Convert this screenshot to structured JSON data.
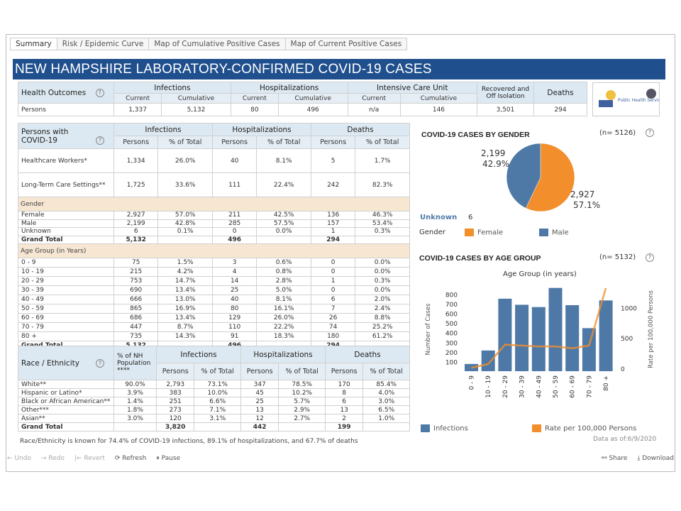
{
  "tabs": [
    "Summary",
    "Risk / Epidemic Curve",
    "Map of Cumulative Positive Cases",
    "Map of Current Positive Cases"
  ],
  "title": "NEW HAMPSHIRE LABORATORY-CONFIRMED COVID-19 CASES",
  "outcomes": {
    "label": "Health Outcomes",
    "groups": [
      "Infections",
      "Hospitalizations",
      "Intensive Care Unit",
      "Recovered and Off Isolation",
      "Deaths"
    ],
    "sub": [
      "Current",
      "Cumulative"
    ],
    "row_label": "Persons",
    "values": [
      "1,337",
      "5,132",
      "80",
      "496",
      "n/a",
      "146",
      "3,501",
      "294"
    ]
  },
  "logo_text": "NH DIVISION OF Public Health Services",
  "persons": {
    "label": "Persons with COVID-19",
    "groups": [
      "Infections",
      "Hospitalizations",
      "Deaths"
    ],
    "sub": [
      "Persons",
      "% of Total"
    ],
    "top_rows": [
      {
        "label": "Healthcare Workers*",
        "v": [
          "1,334",
          "26.0%",
          "40",
          "8.1%",
          "5",
          "1.7%"
        ]
      },
      {
        "label": "Long-Term Care Settings**",
        "v": [
          "1,725",
          "33.6%",
          "111",
          "22.4%",
          "242",
          "82.3%"
        ]
      }
    ],
    "gender_label": "Gender",
    "gender_rows": [
      {
        "label": "Female",
        "v": [
          "2,927",
          "57.0%",
          "211",
          "42.5%",
          "136",
          "46.3%"
        ]
      },
      {
        "label": "Male",
        "v": [
          "2,199",
          "42.8%",
          "285",
          "57.5%",
          "157",
          "53.4%"
        ]
      },
      {
        "label": "Unknown",
        "v": [
          "6",
          "0.1%",
          "0",
          "0.0%",
          "1",
          "0.3%"
        ]
      },
      {
        "label": "Grand Total",
        "v": [
          "5,132",
          "",
          "496",
          "",
          "294",
          ""
        ]
      }
    ],
    "age_label": "Age Group (in Years)",
    "age_rows": [
      {
        "label": "0 - 9",
        "v": [
          "75",
          "1.5%",
          "3",
          "0.6%",
          "0",
          "0.0%"
        ]
      },
      {
        "label": "10 - 19",
        "v": [
          "215",
          "4.2%",
          "4",
          "0.8%",
          "0",
          "0.0%"
        ]
      },
      {
        "label": "20 - 29",
        "v": [
          "753",
          "14.7%",
          "14",
          "2.8%",
          "1",
          "0.3%"
        ]
      },
      {
        "label": "30 - 39",
        "v": [
          "690",
          "13.4%",
          "25",
          "5.0%",
          "0",
          "0.0%"
        ]
      },
      {
        "label": "40 - 49",
        "v": [
          "666",
          "13.0%",
          "40",
          "8.1%",
          "6",
          "2.0%"
        ]
      },
      {
        "label": "50 - 59",
        "v": [
          "865",
          "16.9%",
          "80",
          "16.1%",
          "7",
          "2.4%"
        ]
      },
      {
        "label": "60 - 69",
        "v": [
          "686",
          "13.4%",
          "129",
          "26.0%",
          "26",
          "8.8%"
        ]
      },
      {
        "label": "70 - 79",
        "v": [
          "447",
          "8.7%",
          "110",
          "22.2%",
          "74",
          "25.2%"
        ]
      },
      {
        "label": "80 +",
        "v": [
          "735",
          "14.3%",
          "91",
          "18.3%",
          "180",
          "61.2%"
        ]
      },
      {
        "label": "Grand Total",
        "v": [
          "5,132",
          "",
          "496",
          "",
          "294",
          ""
        ]
      }
    ]
  },
  "race": {
    "label": "Race / Ethnicity",
    "pop_label": "% of NH Population ****",
    "groups": [
      "Infections",
      "Hospitalizations",
      "Deaths"
    ],
    "sub": [
      "Persons",
      "% of Total"
    ],
    "rows": [
      {
        "label": "White**",
        "v": [
          "90.0%",
          "2,793",
          "73.1%",
          "347",
          "78.5%",
          "170",
          "85.4%"
        ]
      },
      {
        "label": "Hispanic or Latino*",
        "v": [
          "3.9%",
          "383",
          "10.0%",
          "45",
          "10.2%",
          "8",
          "4.0%"
        ]
      },
      {
        "label": "Black or African American**",
        "v": [
          "1.4%",
          "251",
          "6.6%",
          "25",
          "5.7%",
          "6",
          "3.0%"
        ]
      },
      {
        "label": "Other***",
        "v": [
          "1.8%",
          "273",
          "7.1%",
          "13",
          "2.9%",
          "13",
          "6.5%"
        ]
      },
      {
        "label": "Asian**",
        "v": [
          "3.0%",
          "120",
          "3.1%",
          "12",
          "2.7%",
          "2",
          "1.0%"
        ]
      },
      {
        "label": "Grand Total",
        "v": [
          "",
          "3,820",
          "",
          "442",
          "",
          "199",
          ""
        ]
      }
    ],
    "footnote": "Race/Ethnicity is known for 74.4% of COVID-19 infections, 89.1% of hospitalizations, and 67.7% of deaths"
  },
  "as_of": "Data as of:6/9/2020",
  "toolbar": {
    "undo": "Undo",
    "redo": "Redo",
    "revert": "Revert",
    "refresh": "Refresh",
    "pause": "Pause",
    "share": "Share",
    "download": "Download"
  },
  "chart_data": [
    {
      "type": "pie",
      "title": "COVID-19 CASES BY GENDER",
      "n_label": "(n= 5126)",
      "slices": [
        {
          "name": "Female",
          "value": 2927,
          "pct": "57.1%",
          "label": "2,927",
          "color": "#f28e2b"
        },
        {
          "name": "Male",
          "value": 2199,
          "pct": "42.9%",
          "label": "2,199",
          "color": "#4e79a7"
        }
      ],
      "unknown_label": "Unknown",
      "unknown_value": "6",
      "legend_title": "Gender",
      "legend": "bottom"
    },
    {
      "type": "bar",
      "title": "COVID-19 CASES BY AGE GROUP",
      "n_label": "(n= 5132)",
      "subtitle": "Age Group (in years)",
      "ylabel": "Number of Cases",
      "y2label": "Rate per 100,000 Persons",
      "categories": [
        "0 - 9",
        "10 - 19",
        "20 - 29",
        "30 - 39",
        "40 - 49",
        "50 - 59",
        "60 - 69",
        "70 - 79",
        "80 +"
      ],
      "series": [
        {
          "name": "Infections",
          "type": "bar",
          "color": "#4e79a7",
          "values": [
            75,
            215,
            753,
            690,
            666,
            865,
            686,
            447,
            735
          ]
        },
        {
          "name": "Rate per 100,000 Persons",
          "type": "line",
          "axis": "right",
          "color": "#f28e2b",
          "values": [
            10,
            70,
            390,
            375,
            360,
            360,
            330,
            375,
            1320
          ]
        }
      ],
      "ylim": [
        0,
        870
      ],
      "yticks": [
        100,
        200,
        300,
        400,
        500,
        600,
        700,
        800
      ],
      "y2lim": [
        0,
        1330
      ],
      "y2ticks": [
        0,
        500,
        1000
      ],
      "legend": "bottom"
    }
  ]
}
